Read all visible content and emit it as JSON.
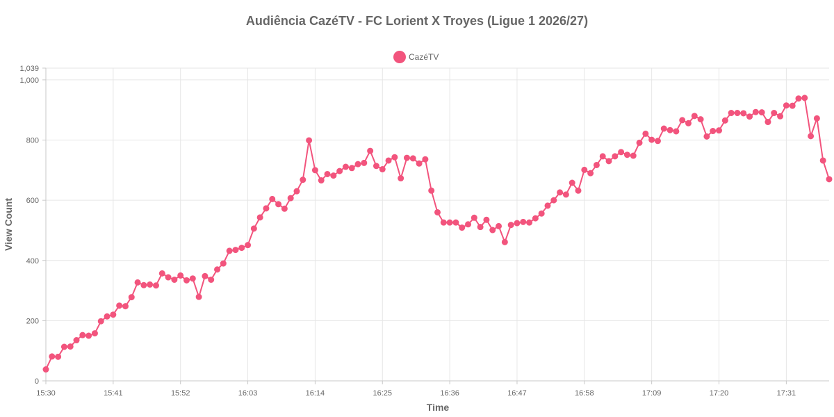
{
  "chart_data": {
    "type": "line",
    "title": "Audiência CazéTV - FC Lorient X Troyes (Ligue 1 2026/27)",
    "xlabel": "Time",
    "ylabel": "View Count",
    "ylim": [
      0,
      1039
    ],
    "yticks": [
      "0",
      "200",
      "400",
      "600",
      "800",
      "1,000",
      "1,039"
    ],
    "ytick_values": [
      0,
      200,
      400,
      600,
      800,
      1000,
      1039
    ],
    "xticks": [
      "15:30",
      "15:41",
      "15:52",
      "16:03",
      "16:14",
      "16:25",
      "16:36",
      "16:47",
      "16:58",
      "17:09",
      "17:20",
      "17:31"
    ],
    "xtick_indices": [
      0,
      11,
      22,
      33,
      44,
      55,
      66,
      77,
      88,
      99,
      110,
      121
    ],
    "grid": true,
    "legend": "top-center",
    "colors": {
      "series": "#f2547d",
      "grid": "#e6e6e6",
      "text": "#666666"
    },
    "series": [
      {
        "name": "CazéTV",
        "values": [
          38,
          81,
          80,
          113,
          114,
          135,
          152,
          150,
          158,
          198,
          214,
          220,
          250,
          248,
          278,
          327,
          318,
          320,
          317,
          357,
          344,
          336,
          350,
          334,
          340,
          279,
          348,
          336,
          370,
          390,
          432,
          435,
          442,
          451,
          506,
          543,
          573,
          604,
          587,
          572,
          607,
          630,
          668,
          799,
          700,
          666,
          687,
          682,
          697,
          711,
          707,
          720,
          724,
          764,
          714,
          703,
          732,
          743,
          673,
          741,
          739,
          722,
          736,
          632,
          560,
          526,
          526,
          526,
          509,
          520,
          542,
          511,
          535,
          501,
          514,
          461,
          518,
          524,
          528,
          526,
          540,
          556,
          582,
          600,
          626,
          619,
          658,
          632,
          701,
          690,
          717,
          746,
          730,
          746,
          760,
          751,
          748,
          791,
          821,
          801,
          797,
          838,
          833,
          829,
          866,
          856,
          880,
          869,
          812,
          830,
          832,
          865,
          890,
          890,
          889,
          878,
          893,
          892,
          860,
          890,
          879,
          915,
          914,
          938,
          940,
          813,
          872,
          732,
          670
        ]
      }
    ]
  }
}
